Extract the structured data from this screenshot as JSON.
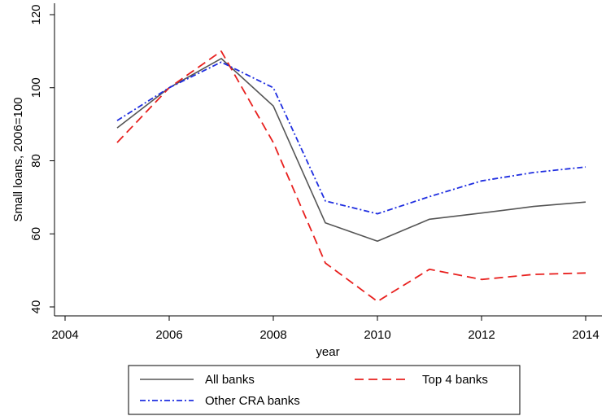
{
  "chart_data": {
    "type": "line",
    "xlabel": "year",
    "ylabel": "Small loans, 2006=100",
    "xlim": [
      2004,
      2014
    ],
    "ylim": [
      40,
      120
    ],
    "xticks": [
      2004,
      2006,
      2008,
      2010,
      2012,
      2014
    ],
    "yticks": [
      40,
      60,
      80,
      100,
      120
    ],
    "x": [
      2005,
      2006,
      2007,
      2008,
      2009,
      2010,
      2011,
      2012,
      2013,
      2014
    ],
    "grid": false,
    "legend_position": "bottom",
    "series": [
      {
        "name": "All banks",
        "color": "#555555",
        "style": "solid",
        "values": [
          89,
          100,
          108,
          95,
          63,
          58,
          64,
          65.7,
          67.5,
          68.7
        ]
      },
      {
        "name": "Top 4 banks",
        "color": "#e8201e",
        "style": "dashed",
        "values": [
          85,
          100,
          110,
          85,
          52,
          41.5,
          50.3,
          47.5,
          48.9,
          49.3
        ]
      },
      {
        "name": "Other CRA banks",
        "color": "#1f2ee0",
        "style": "dashdot",
        "values": [
          91,
          100,
          107,
          100,
          69,
          65.5,
          70.2,
          74.5,
          76.8,
          78.3
        ]
      }
    ]
  }
}
